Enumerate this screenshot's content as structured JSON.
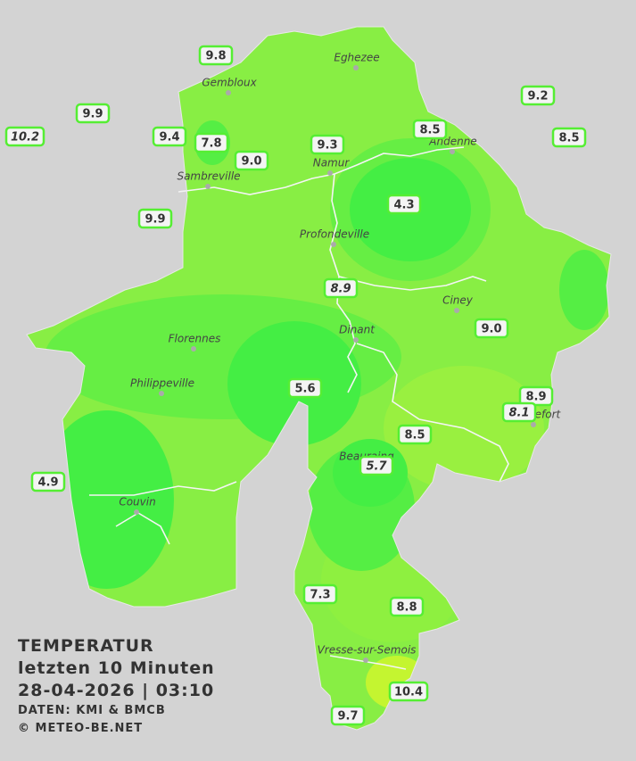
{
  "info": {
    "title": "TEMPERATUR",
    "subtitle": "letzten 10 Minuten",
    "timestamp": "28-04-2026  |  03:10",
    "source": "DATEN: KMI & BMCB",
    "copyright": "© METEO-BE.NET"
  },
  "cities": [
    "Eghezee",
    "Gembloux",
    "Andenne",
    "Namur",
    "Sambreville",
    "Profondeville",
    "Ciney",
    "Dinant",
    "Florennes",
    "Philippeville",
    "Rochefort",
    "Beauraing",
    "Couvin",
    "Vresse-sur-Semois"
  ],
  "stations": [
    {
      "label": "9.8"
    },
    {
      "label": "9.9"
    },
    {
      "label": "10.2",
      "italic": true
    },
    {
      "label": "9.4"
    },
    {
      "label": "7.8"
    },
    {
      "label": "9.0"
    },
    {
      "label": "9.3"
    },
    {
      "label": "8.5"
    },
    {
      "label": "9.2"
    },
    {
      "label": "8.5"
    },
    {
      "label": "9.9"
    },
    {
      "label": "4.3"
    },
    {
      "label": "8.9",
      "italic": true
    },
    {
      "label": "9.0"
    },
    {
      "label": "5.6"
    },
    {
      "label": "8.9"
    },
    {
      "label": "8.1",
      "italic": true
    },
    {
      "label": "8.5"
    },
    {
      "label": "5.7",
      "italic": true
    },
    {
      "label": "4.9"
    },
    {
      "label": "7.3"
    },
    {
      "label": "8.8"
    },
    {
      "label": "10.4"
    },
    {
      "label": "9.7"
    }
  ]
}
